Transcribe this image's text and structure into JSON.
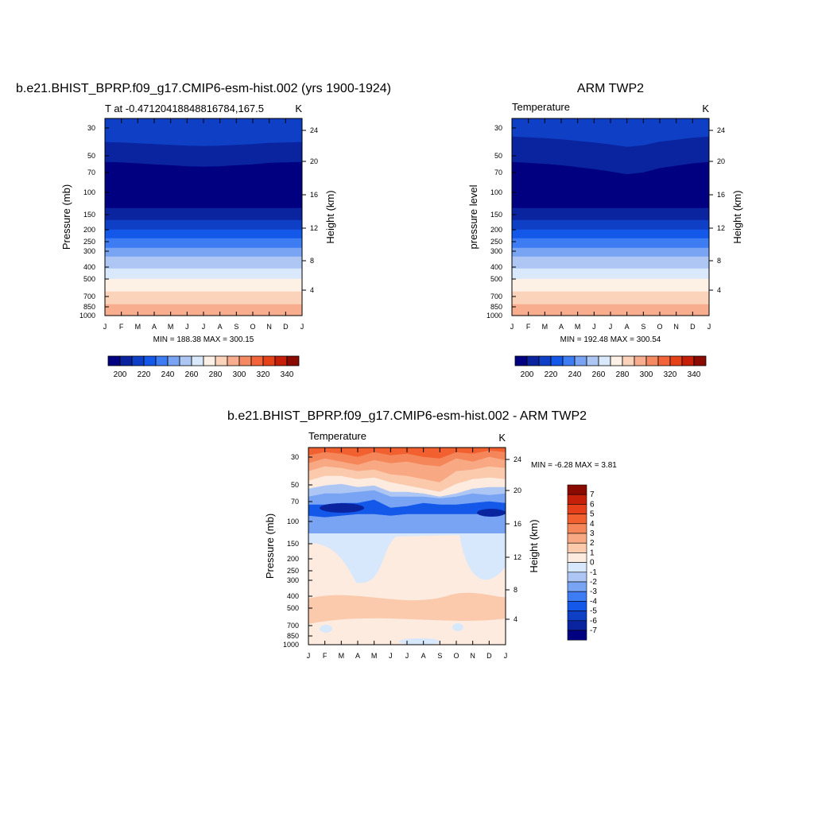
{
  "colors": {
    "temp_palette": [
      "#000080",
      "#0a24a0",
      "#0e3fc4",
      "#1458ea",
      "#3e7cf4",
      "#79a4f3",
      "#aec6f4",
      "#d9e8fb",
      "#fdf0e4",
      "#fbd2ba",
      "#f8ae8e",
      "#f58962",
      "#f2653a",
      "#e5421a",
      "#c51f08",
      "#8a0a00"
    ],
    "diff_palette": [
      "#000080",
      "#0a24a0",
      "#0e3fc4",
      "#1458ea",
      "#3e7cf4",
      "#79a4f3",
      "#aec6f4",
      "#d7e8fc",
      "#fdebe0",
      "#fbcaad",
      "#f8a984",
      "#f5865a",
      "#f2602f",
      "#e5401a",
      "#c5200a",
      "#8a0a00"
    ]
  },
  "chart_data": [
    {
      "type": "heatmap",
      "id": "model",
      "title": "b.e21.BHIST_BPRP.f09_g17.CMIP6-esm-hist.002 (yrs 1900-1924)",
      "left_string": "T at -0.47120418848816784,167.5",
      "right_string": "K",
      "ylabel": "Pressure (mb)",
      "ylabel_right": "Height (km)",
      "x_ticks": [
        "J",
        "F",
        "M",
        "A",
        "M",
        "J",
        "J",
        "A",
        "S",
        "O",
        "N",
        "D",
        "J"
      ],
      "y_ticks": [
        "30",
        "50",
        "70",
        "100",
        "150",
        "200",
        "250",
        "300",
        "400",
        "500",
        "700",
        "850",
        "1000"
      ],
      "y_ticks_right": [
        "24",
        "20",
        "16",
        "12",
        "8",
        "4"
      ],
      "minmax_text": "MIN = 188.38 MAX = 300.15",
      "colorbar_labels": [
        "200",
        "220",
        "240",
        "260",
        "280",
        "300",
        "320",
        "340"
      ],
      "ylim": [
        1000,
        25
      ]
    },
    {
      "type": "heatmap",
      "id": "obs",
      "title": "ARM TWP2",
      "left_string": "Temperature",
      "right_string": "K",
      "ylabel": "pressure level",
      "ylabel_right": "Height (km)",
      "x_ticks": [
        "J",
        "F",
        "M",
        "A",
        "M",
        "J",
        "J",
        "A",
        "S",
        "O",
        "N",
        "D",
        "J"
      ],
      "y_ticks": [
        "30",
        "50",
        "70",
        "100",
        "150",
        "200",
        "250",
        "300",
        "400",
        "500",
        "700",
        "850",
        "1000"
      ],
      "y_ticks_right": [
        "24",
        "20",
        "16",
        "12",
        "8",
        "4"
      ],
      "minmax_text": "MIN = 192.48 MAX = 300.54",
      "colorbar_labels": [
        "200",
        "220",
        "240",
        "260",
        "280",
        "300",
        "320",
        "340"
      ],
      "ylim": [
        1000,
        25
      ]
    },
    {
      "type": "heatmap",
      "id": "diff",
      "title": "b.e21.BHIST_BPRP.f09_g17.CMIP6-esm-hist.002 - ARM TWP2",
      "left_string": "Temperature",
      "right_string": "K",
      "ylabel": "Pressure (mb)",
      "ylabel_right": "Height (km)",
      "x_ticks": [
        "J",
        "F",
        "M",
        "A",
        "M",
        "J",
        "J",
        "A",
        "S",
        "O",
        "N",
        "D",
        "J"
      ],
      "y_ticks": [
        "30",
        "50",
        "70",
        "100",
        "150",
        "200",
        "250",
        "300",
        "400",
        "500",
        "700",
        "850",
        "1000"
      ],
      "y_ticks_right": [
        "24",
        "20",
        "16",
        "12",
        "8",
        "4"
      ],
      "minmax_text": "MIN =  -6.28 MAX =   3.81",
      "colorbar_labels": [
        "7",
        "6",
        "5",
        "4",
        "3",
        "2",
        "1",
        "0",
        "-1",
        "-2",
        "-3",
        "-4",
        "-5",
        "-6",
        "-7"
      ],
      "ylim": [
        1000,
        25
      ]
    }
  ]
}
